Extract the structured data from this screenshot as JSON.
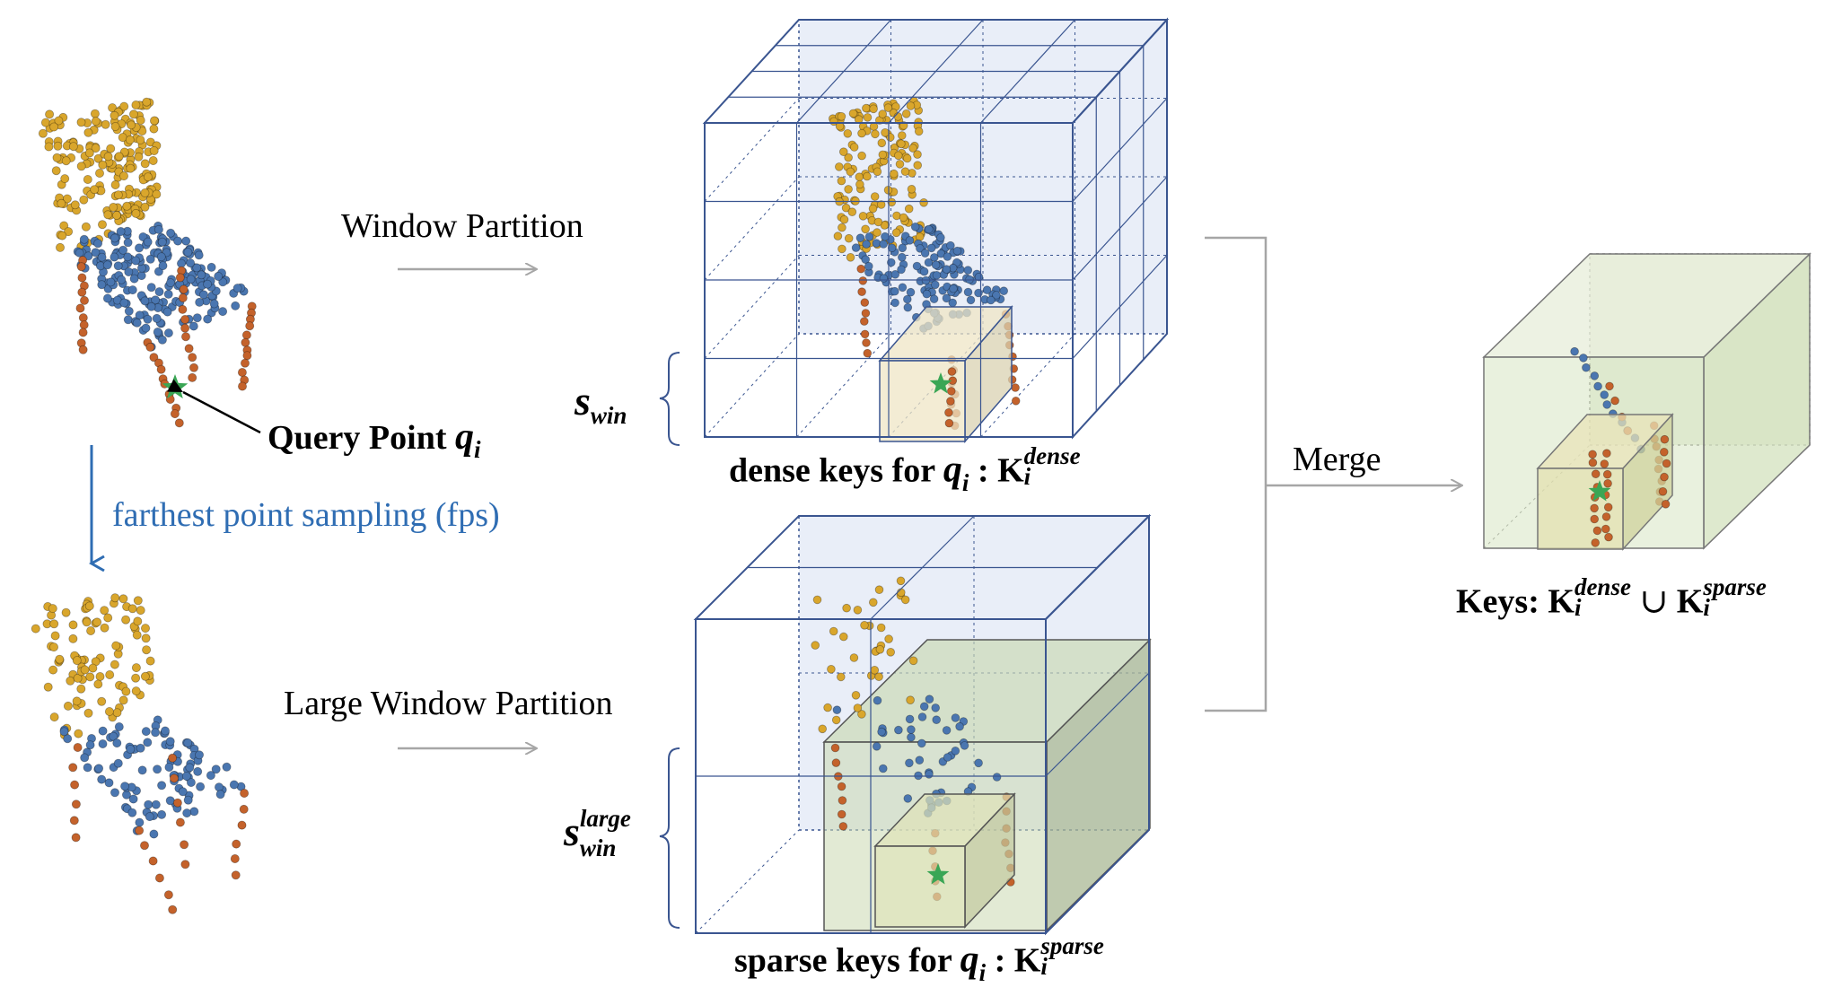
{
  "labels": {
    "window_partition": "Window Partition",
    "large_window_partition": "Large Window Partition",
    "merge": "Merge",
    "fps": "farthest point sampling (fps)",
    "query_point": "Query Point",
    "query_symbol": "q",
    "query_sub": "i",
    "s_win_symbol": "s",
    "s_win_sub": "win",
    "s_large_sup": "large",
    "dense_caption": "dense keys for",
    "sparse_caption": "sparse keys for",
    "K": "K",
    "i": "i",
    "colon": ":",
    "dense": "dense",
    "sparse": "sparse",
    "keys_prefix": "Keys:",
    "union": "∪"
  },
  "colors": {
    "head": "#d9a62c",
    "seat": "#4a76b0",
    "legs": "#c4622b",
    "star": "#3aa655",
    "cube_edge": "#3a5590",
    "cube_fill": "#e9eef8",
    "green_fill": "#cad9b0",
    "inner_fill": "#efe6c6",
    "arrow_gray": "#a6a6a6",
    "fps_blue": "#2f6db3"
  },
  "icons": [
    "green-star-icon",
    "query-arrow-icon"
  ]
}
